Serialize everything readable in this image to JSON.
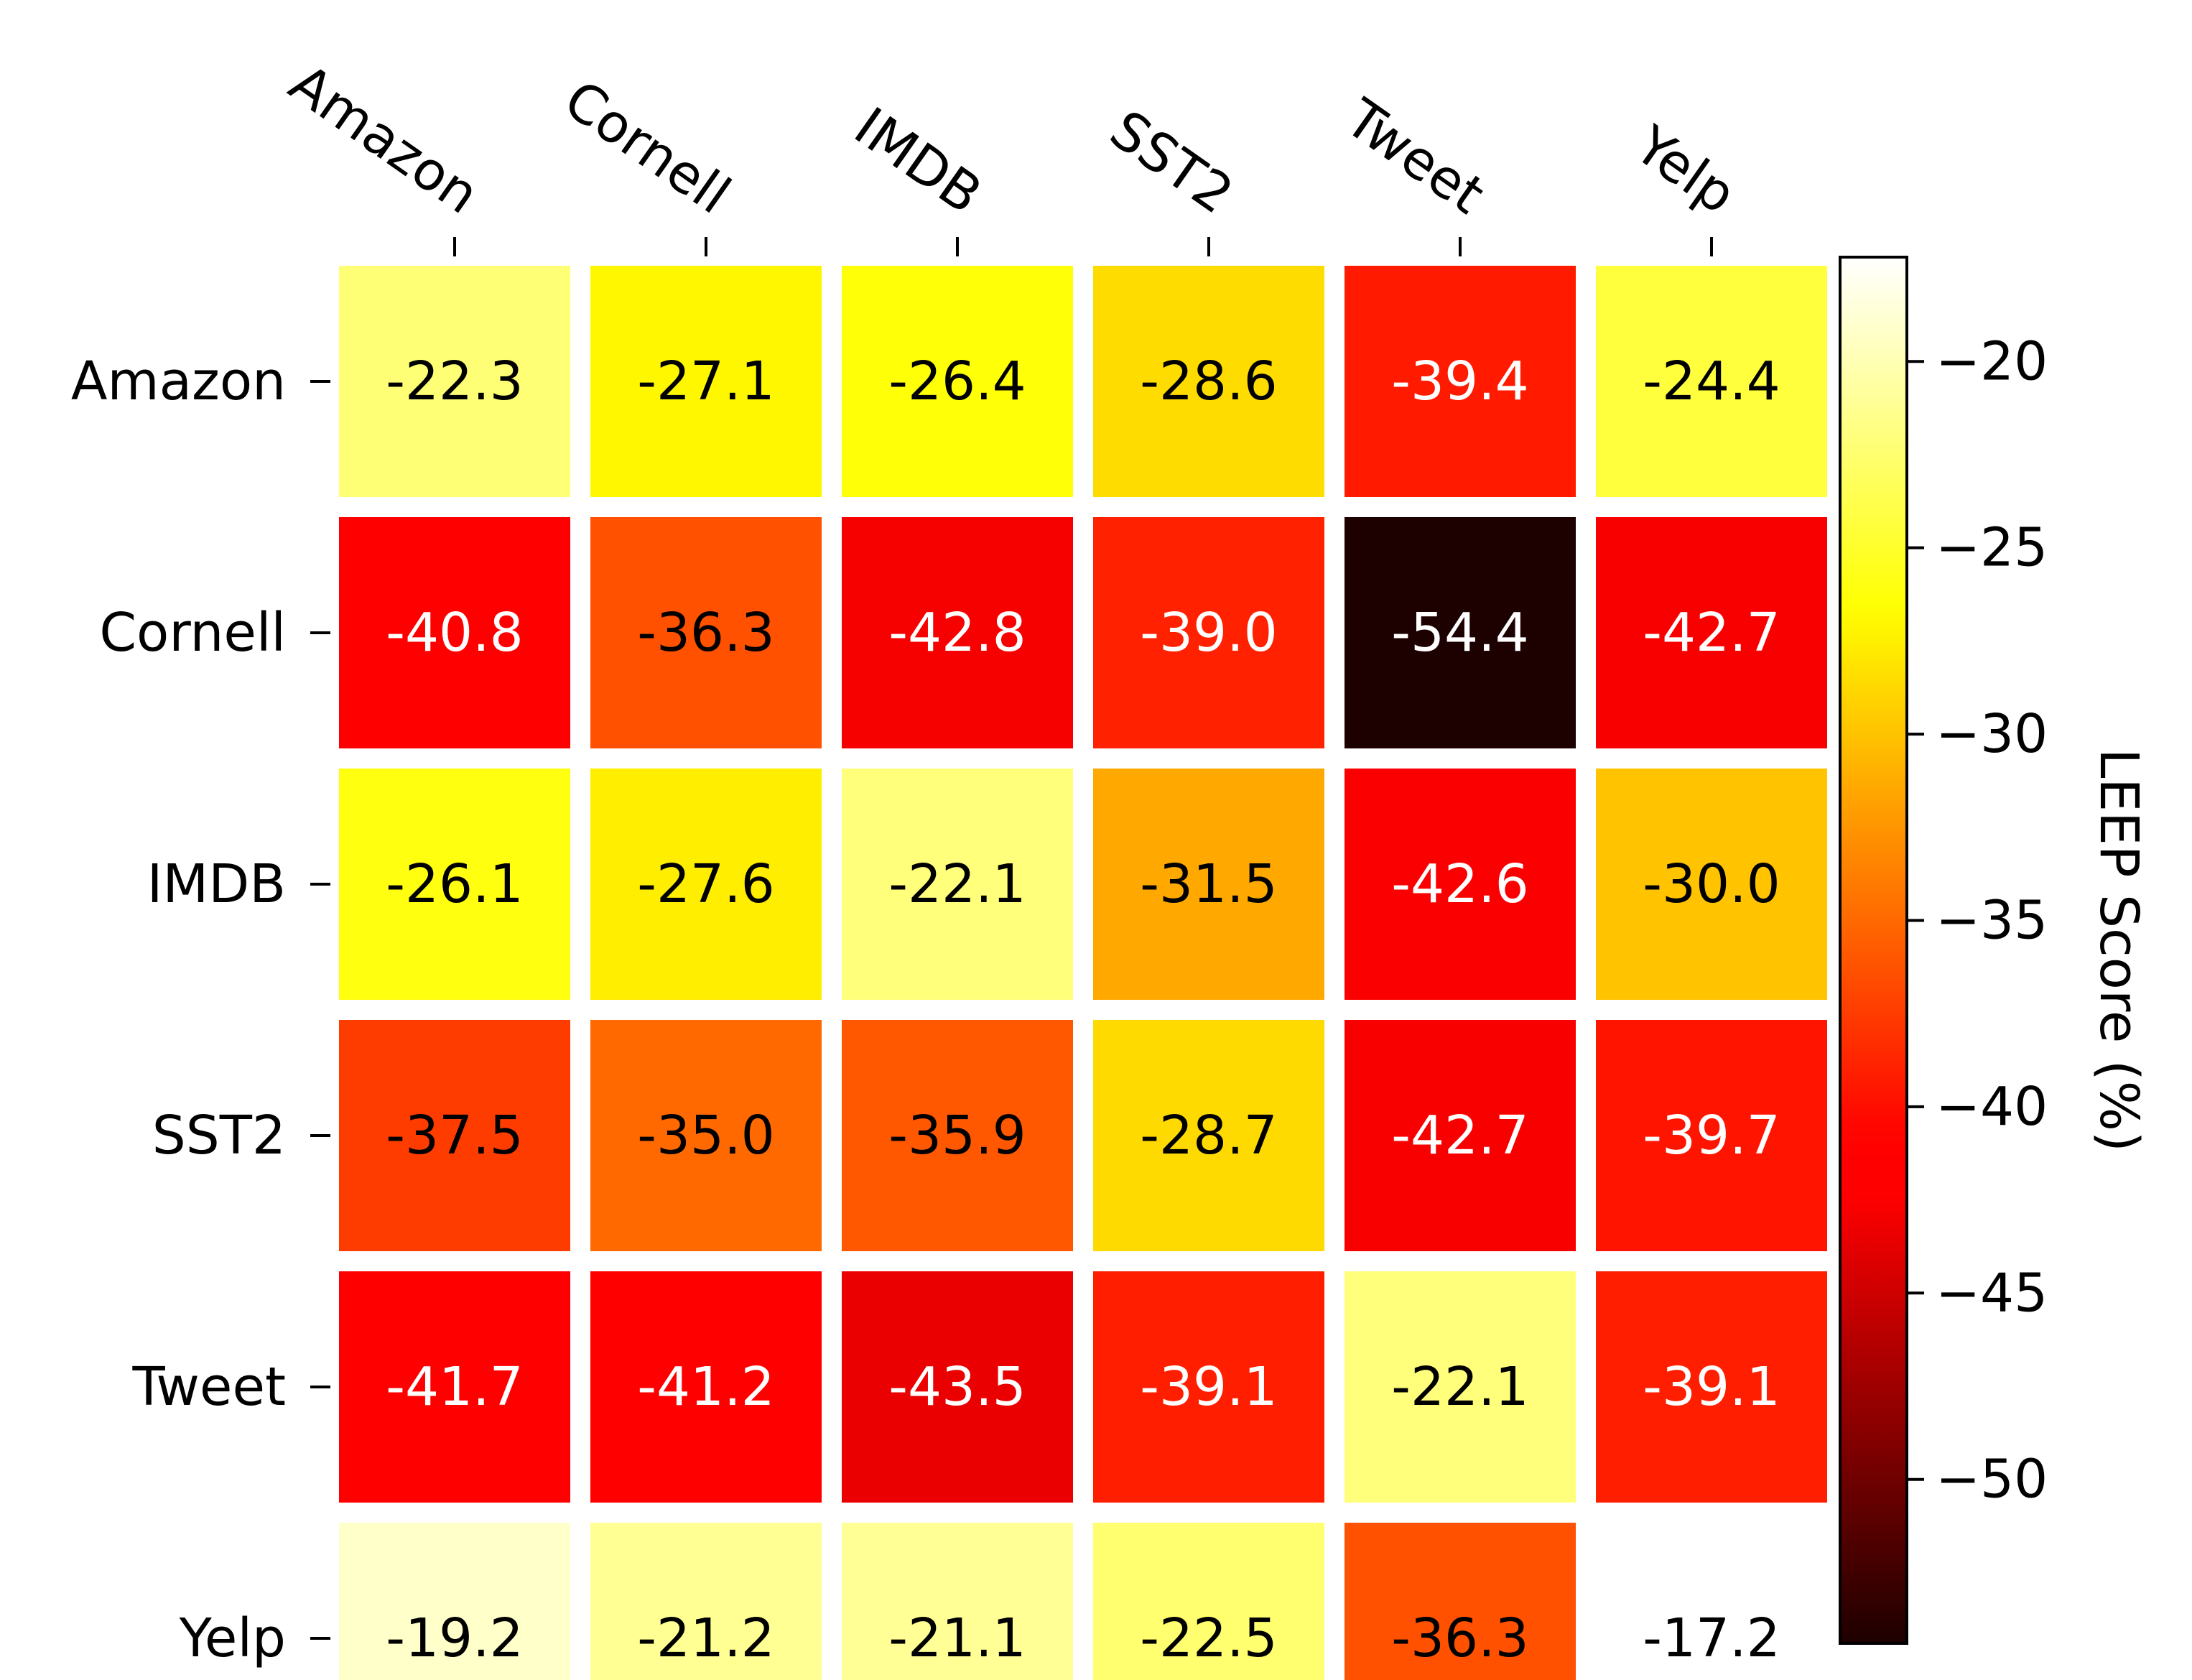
{
  "chart_data": {
    "type": "heatmap",
    "title": "",
    "x_categories": [
      "Amazon",
      "Cornell",
      "IMDB",
      "SST2",
      "Tweet",
      "Yelp"
    ],
    "y_categories": [
      "Amazon",
      "Cornell",
      "IMDB",
      "SST2",
      "Tweet",
      "Yelp"
    ],
    "values": [
      [
        -22.3,
        -27.1,
        -26.4,
        -28.6,
        -39.4,
        -24.4
      ],
      [
        -40.8,
        -36.3,
        -42.8,
        -39.0,
        -54.4,
        -42.7
      ],
      [
        -26.1,
        -27.6,
        -22.1,
        -31.5,
        -42.6,
        -30.0
      ],
      [
        -37.5,
        -35.0,
        -35.9,
        -28.7,
        -42.7,
        -39.7
      ],
      [
        -41.7,
        -41.2,
        -43.5,
        -39.1,
        -22.1,
        -39.1
      ],
      [
        -19.2,
        -21.2,
        -21.1,
        -22.5,
        -36.3,
        -17.2
      ]
    ],
    "value_labels": [
      [
        "-22.3",
        "-27.1",
        "-26.4",
        "-28.6",
        "-39.4",
        "-24.4"
      ],
      [
        "-40.8",
        "-36.3",
        "-42.8",
        "-39.0",
        "-54.4",
        "-42.7"
      ],
      [
        "-26.1",
        "-27.6",
        "-22.1",
        "-31.5",
        "-42.6",
        "-30.0"
      ],
      [
        "-37.5",
        "-35.0",
        "-35.9",
        "-28.7",
        "-42.7",
        "-39.7"
      ],
      [
        "-41.7",
        "-41.2",
        "-43.5",
        "-39.1",
        "-22.1",
        "-39.1"
      ],
      [
        "-19.2",
        "-21.2",
        "-21.1",
        "-22.5",
        "-36.3",
        "-17.2"
      ]
    ],
    "colormap": "hot",
    "vmin": -54.4,
    "vmax": -17.2,
    "x_axis_position": "top",
    "colorbar": {
      "label": "LEEP Score (%)",
      "ticks": [
        -20,
        -25,
        -30,
        -35,
        -40,
        -45,
        -50
      ],
      "tick_labels": [
        "−20",
        "−25",
        "−30",
        "−35",
        "−40",
        "−45",
        "−50"
      ]
    }
  }
}
